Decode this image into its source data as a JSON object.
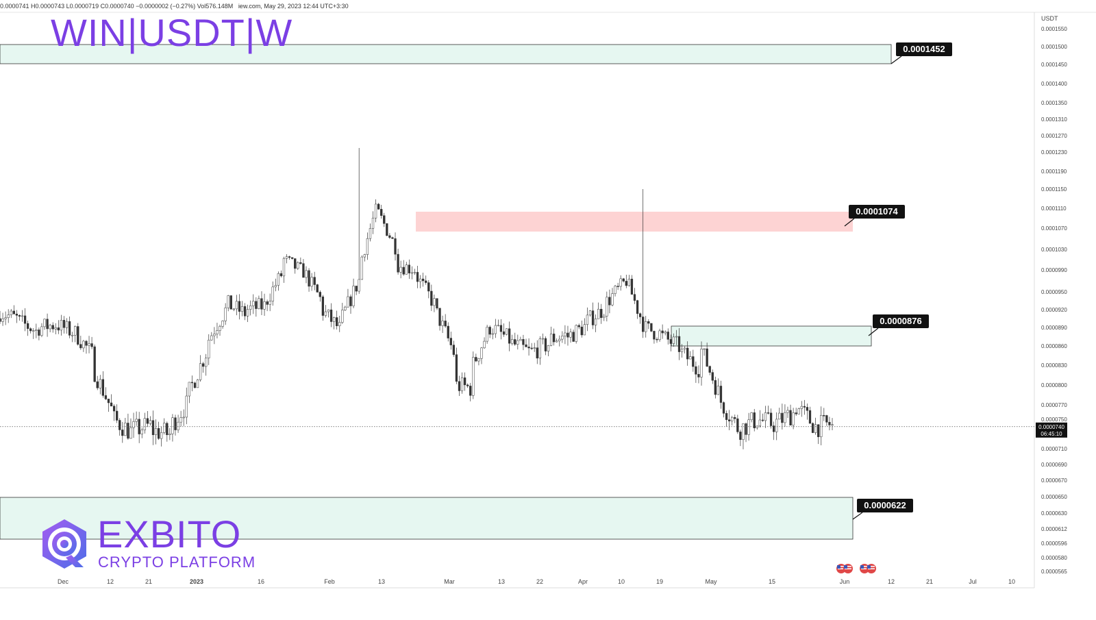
{
  "header": {
    "info_line": "iew.com, May 29, 2023 12:44 UTC+3:30",
    "ohlc_line": "0.0000741  H0.0000743  L0.0000719  C0.0000740  −0.0000002 (−0.27%)  Vol576.148M",
    "symbol_title": "WIN|USDT|W"
  },
  "brand": {
    "name": "EXBITO",
    "tagline": "CRYPTO PLATFORM"
  },
  "chart_data": {
    "type": "candlestick",
    "symbol": "WIN/USDT",
    "currency_label": "USDT",
    "price_ticks": [
      "0.0001550",
      "0.0001500",
      "0.0001450",
      "0.0001400",
      "0.0001350",
      "0.0001310",
      "0.0001270",
      "0.0001230",
      "0.0001190",
      "0.0001150",
      "0.0001110",
      "0.0001070",
      "0.0001030",
      "0.0000990",
      "0.0000950",
      "0.0000920",
      "0.0000890",
      "0.0000860",
      "0.0000830",
      "0.0000800",
      "0.0000770",
      "0.0000750",
      "0.0000710",
      "0.0000690",
      "0.0000670",
      "0.0000650",
      "0.0000630",
      "0.0000612",
      "0.0000596",
      "0.0000580",
      "0.0000565"
    ],
    "x_ticks": [
      {
        "label": "Dec",
        "bold": false
      },
      {
        "label": "12",
        "bold": false
      },
      {
        "label": "21",
        "bold": false
      },
      {
        "label": "2023",
        "bold": true
      },
      {
        "label": "16",
        "bold": false
      },
      {
        "label": "Feb",
        "bold": false
      },
      {
        "label": "13",
        "bold": false
      },
      {
        "label": "Mar",
        "bold": false
      },
      {
        "label": "13",
        "bold": false
      },
      {
        "label": "22",
        "bold": false
      },
      {
        "label": "Apr",
        "bold": false
      },
      {
        "label": "10",
        "bold": false
      },
      {
        "label": "19",
        "bold": false
      },
      {
        "label": "May",
        "bold": false
      },
      {
        "label": "15",
        "bold": false
      },
      {
        "label": "Jun",
        "bold": false
      },
      {
        "label": "12",
        "bold": false
      },
      {
        "label": "21",
        "bold": false
      },
      {
        "label": "Jul",
        "bold": false
      },
      {
        "label": "10",
        "bold": false
      }
    ],
    "current_price": {
      "value": "0.0000740",
      "countdown": "06:45:10"
    },
    "zones": [
      {
        "name": "resistance-zone-top",
        "color": "#e6f7f1",
        "label": "0.0001452",
        "price_top": 0.00015,
        "price_bottom": 0.0001452
      },
      {
        "name": "supply-zone",
        "color": "#fdd3d3",
        "label": "0.0001074",
        "price_top": 0.0001105,
        "price_bottom": 0.0001074
      },
      {
        "name": "support-zone-mid",
        "color": "#e6f7f1",
        "label": "0.0000876",
        "price_top": 8.95e-05,
        "price_bottom": 8.76e-05
      },
      {
        "name": "support-zone-bottom",
        "color": "#e6f7f1",
        "label": "0.0000622",
        "price_top": 6.55e-05,
        "price_bottom": 5.96e-05
      }
    ],
    "price_path": [
      [
        9.15e-05,
        9.05e-05
      ],
      [
        9e-05,
        8.8e-05
      ],
      [
        8.9e-05,
        8.95e-05
      ],
      [
        8.95e-05,
        8.8e-05
      ],
      [
        8.8e-05,
        8.5e-05
      ],
      [
        8.2e-05,
        7.6e-05
      ],
      [
        7.5e-05,
        7.3e-05
      ],
      [
        7.35e-05,
        7.45e-05
      ],
      [
        7.35e-05,
        7.25e-05
      ],
      [
        7.4e-05,
        7.7e-05
      ],
      [
        7.9e-05,
        8.5e-05
      ],
      [
        8.7e-05,
        9.2e-05
      ],
      [
        9.3e-05,
        9.1e-05
      ],
      [
        9.2e-05,
        9.25e-05
      ],
      [
        9.3e-05,
        9.8e-05
      ],
      [
        0.000101,
        9.85e-05
      ],
      [
        9.9e-05,
        9.4e-05
      ],
      [
        9.2e-05,
        8.8e-05
      ],
      [
        9e-05,
        9.6e-05
      ],
      [
        0.0001,
        0.000113
      ],
      [
        0.00011,
        0.000104
      ],
      [
        0.0001,
        9.95e-05
      ],
      [
        9.8e-05,
        9.3e-05
      ],
      [
        9.2e-05,
        8.7e-05
      ],
      [
        8e-05,
        7.8e-05
      ],
      [
        8.3e-05,
        9e-05
      ],
      [
        8.9e-05,
        8.7e-05
      ],
      [
        8.65e-05,
        8.5e-05
      ],
      [
        8.5e-05,
        8.6e-05
      ],
      [
        8.7e-05,
        8.8e-05
      ],
      [
        8.75e-05,
        8.9e-05
      ],
      [
        9e-05,
        9.2e-05
      ],
      [
        9.3e-05,
        9.6e-05
      ],
      [
        9.8e-05,
        9e-05
      ],
      [
        8.9e-05,
        8.8e-05
      ],
      [
        8.75e-05,
        8.6e-05
      ],
      [
        8.5e-05,
        8.1e-05
      ],
      [
        8.6e-05,
        7.9e-05
      ],
      [
        7.8e-05,
        7.4e-05
      ],
      [
        7.35e-05,
        7.5e-05
      ],
      [
        7.5e-05,
        7.42e-05
      ],
      [
        7.45e-05,
        7.55e-05
      ],
      [
        7.7e-05,
        7.45e-05
      ],
      [
        7.4e-05,
        7.45e-05
      ],
      [
        7.4e-05,
        7.42e-05
      ]
    ],
    "spike_wicks": [
      {
        "index": 19,
        "high": 0.000124
      },
      {
        "index": 13,
        "high": 0.0001055
      },
      {
        "index": 6,
        "high": 9.85e-05
      },
      {
        "index": 34,
        "high": 0.000115
      },
      {
        "index": 36,
        "high": 9.65e-05
      }
    ]
  }
}
